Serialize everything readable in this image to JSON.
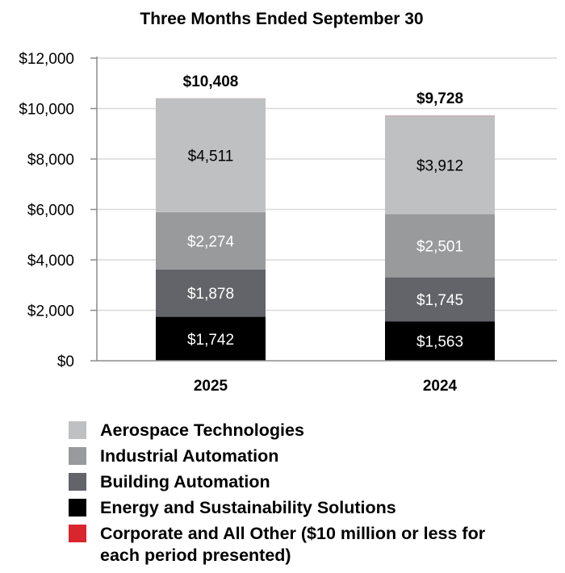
{
  "chart_data": {
    "type": "bar",
    "stacked": true,
    "title": "Three Months Ended September 30",
    "categories": [
      "2025",
      "2024"
    ],
    "totals": [
      "$10,408",
      "$9,728"
    ],
    "ylim": [
      0,
      12000
    ],
    "yticks": [
      0,
      2000,
      4000,
      6000,
      8000,
      10000,
      12000
    ],
    "ytick_labels": [
      "$0",
      "$2,000",
      "$4,000",
      "$6,000",
      "$8,000",
      "$10,000",
      "$12,000"
    ],
    "grid": true,
    "legend_position": "bottom",
    "series": [
      {
        "name": "Energy and Sustainability Solutions",
        "color": "#000000",
        "label_color": "#ffffff",
        "values": [
          1742,
          1563
        ],
        "labels": [
          "$1,742",
          "$1,563"
        ]
      },
      {
        "name": "Building Automation",
        "color": "#626469",
        "label_color": "#ffffff",
        "values": [
          1878,
          1745
        ],
        "labels": [
          "$1,878",
          "$1,745"
        ]
      },
      {
        "name": "Industrial Automation",
        "color": "#999a9c",
        "label_color": "#ffffff",
        "values": [
          2274,
          2501
        ],
        "labels": [
          "$2,274",
          "$2,501"
        ]
      },
      {
        "name": "Aerospace Technologies",
        "color": "#bfc0c2",
        "label_color": "#000000",
        "values": [
          4511,
          3912
        ],
        "labels": [
          "$4,511",
          "$3,912"
        ]
      },
      {
        "name": "Corporate and All Other ($10 million or less for each period presented)",
        "color": "#d9262e",
        "label_color": "#ffffff",
        "values": [
          3,
          7
        ],
        "labels": [
          "",
          ""
        ]
      }
    ]
  },
  "legend": {
    "items": [
      {
        "label": "Aerospace Technologies",
        "color": "#bfc0c2"
      },
      {
        "label": "Industrial Automation",
        "color": "#999a9c"
      },
      {
        "label": "Building Automation",
        "color": "#626469"
      },
      {
        "label": "Energy and Sustainability Solutions",
        "color": "#000000"
      },
      {
        "label": "Corporate and All Other ($10 million or less for each period presented)",
        "color": "#d9262e"
      }
    ]
  }
}
